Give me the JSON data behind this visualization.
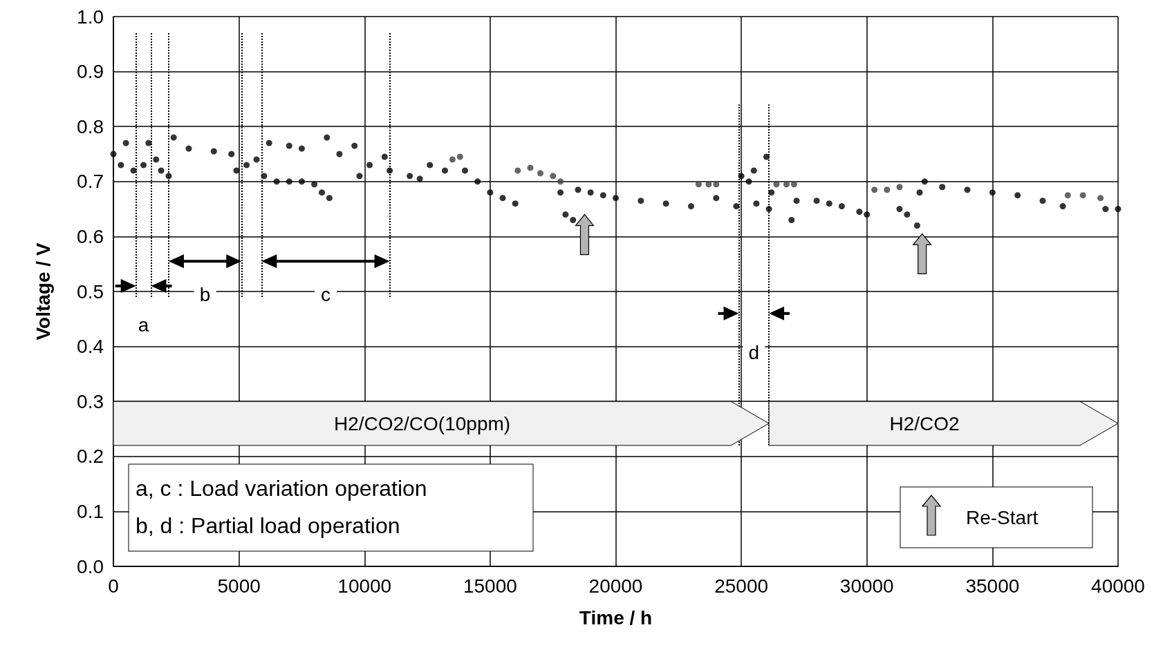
{
  "chart_data": {
    "type": "scatter",
    "xlabel": "Time / h",
    "ylabel": "Voltage / V",
    "xlim": [
      0,
      40000
    ],
    "xticks": [
      0,
      5000,
      10000,
      15000,
      20000,
      25000,
      30000,
      35000,
      40000
    ],
    "ylim": [
      0,
      1
    ],
    "yticks": [
      {
        "value": 0,
        "label": "0.0"
      },
      0.1,
      0.2,
      0.3,
      0.4,
      0.5,
      0.6,
      0.7,
      0.8,
      0.9,
      {
        "value": 1,
        "label": "1.0"
      }
    ],
    "grid": true,
    "marker": "circle",
    "series": [
      {
        "color": "#000000",
        "x": [
          0,
          300,
          500,
          800,
          1200,
          1400,
          1700,
          1900,
          2200,
          2400,
          3000,
          4000,
          4700,
          4900,
          5300,
          5700,
          6000,
          6500,
          7000,
          7500,
          8000,
          8300,
          8500,
          8600,
          6200,
          7000,
          7500,
          9000,
          9600,
          9800,
          10200,
          10800,
          11000,
          11800,
          12200,
          12600,
          13200,
          14000,
          14500,
          15000,
          15500,
          16000,
          17800,
          18000,
          18300,
          18500,
          19000,
          19500,
          20000,
          21000,
          22000,
          23000,
          24000,
          24800,
          25000,
          25300,
          25500,
          25600,
          26000,
          26100,
          26200,
          27000,
          27200,
          28000,
          28500,
          29000,
          29700,
          30000,
          31300,
          31600,
          32000,
          32100,
          32300,
          33000,
          34000,
          35000,
          36000,
          37000,
          37800,
          39500,
          40000
        ],
        "values": [
          0.75,
          0.73,
          0.77,
          0.72,
          0.73,
          0.77,
          0.74,
          0.72,
          0.71,
          0.78,
          0.76,
          0.755,
          0.75,
          0.72,
          0.73,
          0.74,
          0.71,
          0.7,
          0.7,
          0.7,
          0.695,
          0.68,
          0.78,
          0.67,
          0.77,
          0.765,
          0.76,
          0.75,
          0.765,
          0.71,
          0.73,
          0.745,
          0.72,
          0.71,
          0.705,
          0.73,
          0.72,
          0.72,
          0.7,
          0.68,
          0.67,
          0.66,
          0.68,
          0.64,
          0.63,
          0.685,
          0.68,
          0.675,
          0.67,
          0.665,
          0.66,
          0.655,
          0.67,
          0.655,
          0.71,
          0.7,
          0.72,
          0.66,
          0.745,
          0.65,
          0.68,
          0.63,
          0.665,
          0.665,
          0.66,
          0.655,
          0.645,
          0.64,
          0.65,
          0.64,
          0.62,
          0.68,
          0.7,
          0.69,
          0.685,
          0.68,
          0.675,
          0.665,
          0.655,
          0.65,
          0.65
        ]
      },
      {
        "color": "#404040",
        "x": [
          13500,
          13800,
          16100,
          16600,
          17000,
          17500,
          17800,
          23300,
          23700,
          24000,
          26400,
          26800,
          27100,
          30300,
          30800,
          31300,
          38000,
          38600,
          39300
        ],
        "values": [
          0.74,
          0.745,
          0.72,
          0.725,
          0.715,
          0.71,
          0.7,
          0.695,
          0.695,
          0.695,
          0.695,
          0.695,
          0.695,
          0.685,
          0.685,
          0.69,
          0.675,
          0.675,
          0.67
        ]
      }
    ],
    "ref_lines": [
      {
        "axis": "x",
        "value": 900,
        "line_style": "dotted"
      },
      {
        "axis": "x",
        "value": 1500,
        "line_style": "dotted"
      },
      {
        "axis": "x",
        "value": 2200,
        "line_style": "dotted"
      },
      {
        "axis": "x",
        "value": 5100,
        "line_style": "dotted"
      },
      {
        "axis": "x",
        "value": 5900,
        "line_style": "dotted"
      },
      {
        "axis": "x",
        "value": 11000,
        "line_style": "dotted"
      },
      {
        "axis": "x",
        "value": 24900,
        "line_style": "dotted"
      },
      {
        "axis": "x",
        "value": 26100,
        "line_style": "dotted"
      }
    ],
    "bands": [
      {
        "axis": "x",
        "from": 0,
        "to": 26100,
        "label": "H2/CO2/CO(10ppm)",
        "color": "#f0f0f0"
      },
      {
        "axis": "x",
        "from": 26100,
        "to": 40000,
        "label": "H2/CO2",
        "color": "#f0f0f0"
      }
    ],
    "annotations": [
      "a",
      "b",
      "c",
      "d",
      "a, c : Load variation operation",
      "b, d : Partial load operation",
      "Re-Start"
    ]
  }
}
